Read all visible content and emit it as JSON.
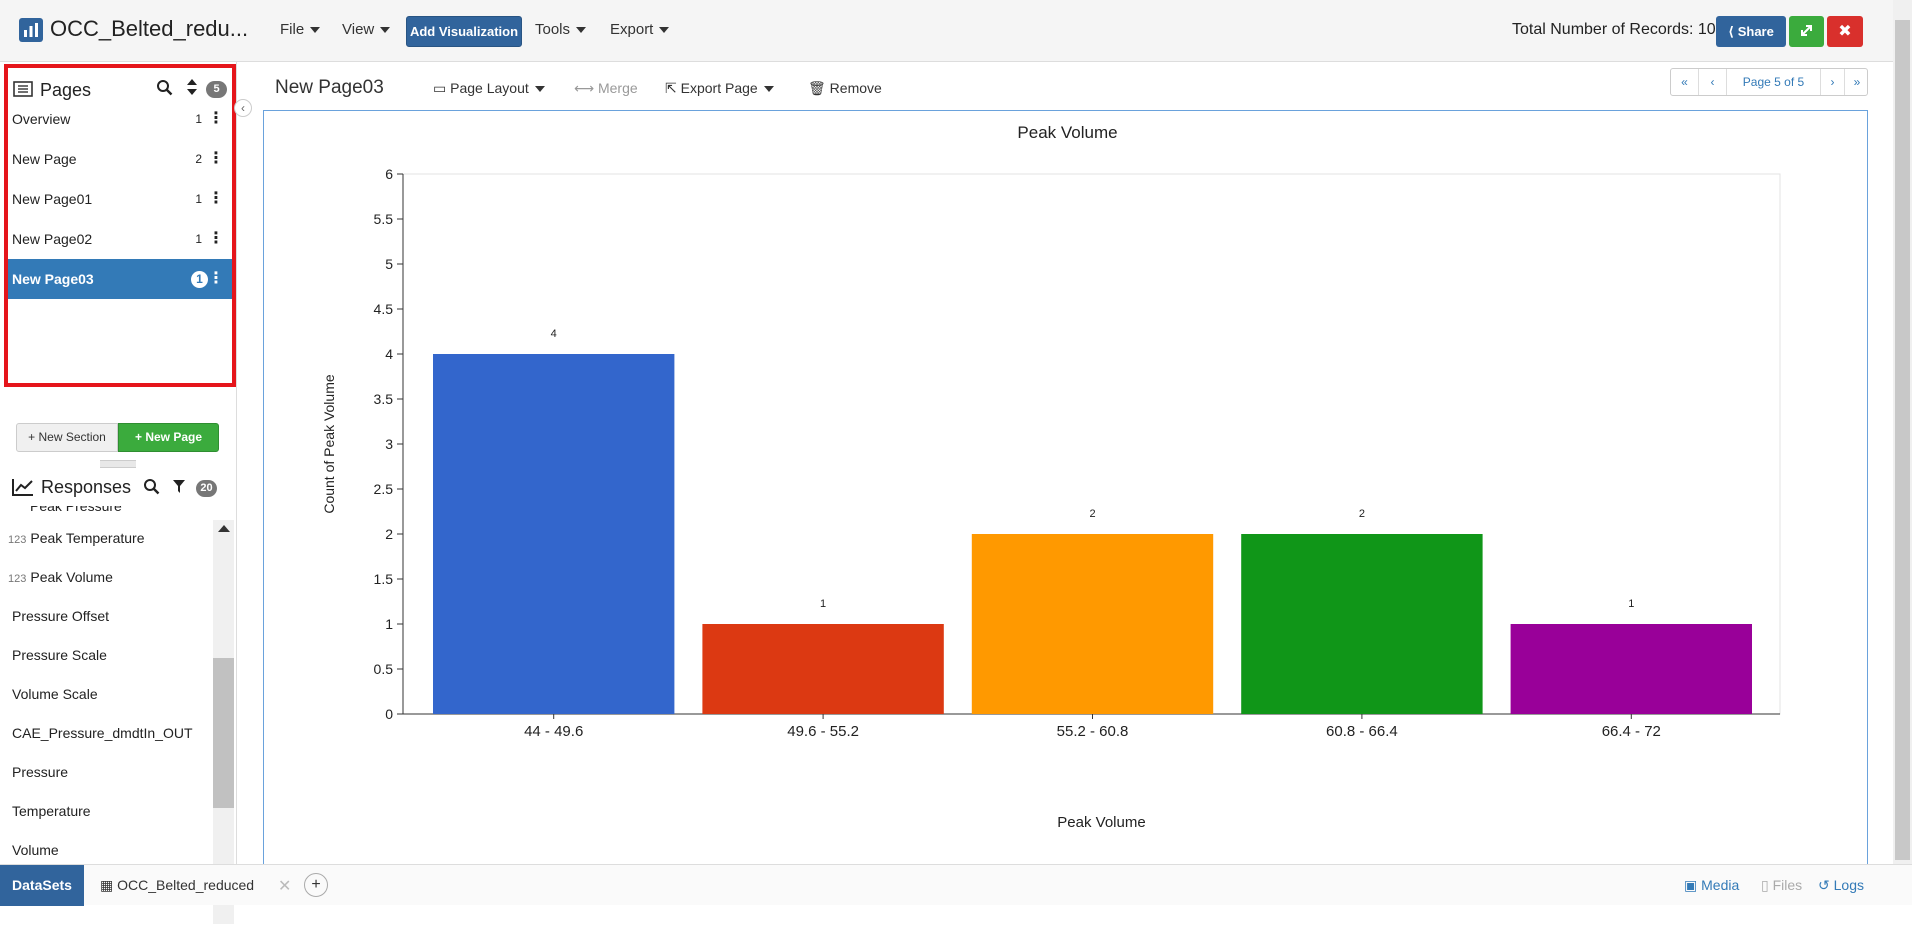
{
  "app": {
    "title": "OCC_Belted_redu..."
  },
  "menu": {
    "file": "File",
    "view": "View",
    "add_visualization": "Add Visualization",
    "tools": "Tools",
    "export": "Export"
  },
  "header": {
    "records": "Total Number of Records: 10",
    "share": "Share",
    "close_glyph": "✖"
  },
  "pages_panel": {
    "title": "Pages",
    "count": "5",
    "items": [
      {
        "label": "Overview",
        "count": "1"
      },
      {
        "label": "New Page",
        "count": "2"
      },
      {
        "label": "New Page01",
        "count": "1"
      },
      {
        "label": "New Page02",
        "count": "1"
      },
      {
        "label": "New Page03",
        "count": "1"
      }
    ],
    "new_section": "New Section",
    "new_page": "New Page"
  },
  "responses_panel": {
    "title": "Responses",
    "count": "20",
    "partial_item": "Peak Pressure",
    "items": [
      {
        "type": "123",
        "label": "Peak Temperature"
      },
      {
        "type": "123",
        "label": "Peak Volume"
      },
      {
        "type": "",
        "label": "Pressure Offset"
      },
      {
        "type": "",
        "label": "Pressure Scale"
      },
      {
        "type": "",
        "label": "Volume Scale"
      },
      {
        "type": "",
        "label": "CAE_Pressure_dmdtIn_OUT"
      },
      {
        "type": "",
        "label": "Pressure"
      },
      {
        "type": "",
        "label": "Temperature"
      },
      {
        "type": "",
        "label": "Volume"
      }
    ]
  },
  "page_toolbar": {
    "title": "New Page03",
    "layout": "Page Layout",
    "merge": "Merge",
    "export_page": "Export Page",
    "remove": "Remove"
  },
  "pager": {
    "label": "Page 5 of 5"
  },
  "chart_data": {
    "type": "bar",
    "title": "Peak Volume",
    "xlabel": "Peak Volume",
    "ylabel": "Count of Peak Volume",
    "categories": [
      "44 - 49.6",
      "49.6 - 55.2",
      "55.2 - 60.8",
      "60.8 - 66.4",
      "66.4 - 72"
    ],
    "values": [
      4,
      1,
      2,
      2,
      1
    ],
    "colors": [
      "#3366cc",
      "#dc3912",
      "#ff9900",
      "#109618",
      "#990099"
    ],
    "ylim": [
      0,
      6
    ],
    "yticks": [
      "0",
      "0.5",
      "1",
      "1.5",
      "2",
      "2.5",
      "3",
      "3.5",
      "4",
      "4.5",
      "5",
      "5.5",
      "6"
    ],
    "grid": false,
    "legend": "none"
  },
  "bottom": {
    "datasets": "DataSets",
    "dataset_tab": "OCC_Belted_reduced",
    "media": "Media",
    "files": "Files",
    "logs": "Logs"
  }
}
